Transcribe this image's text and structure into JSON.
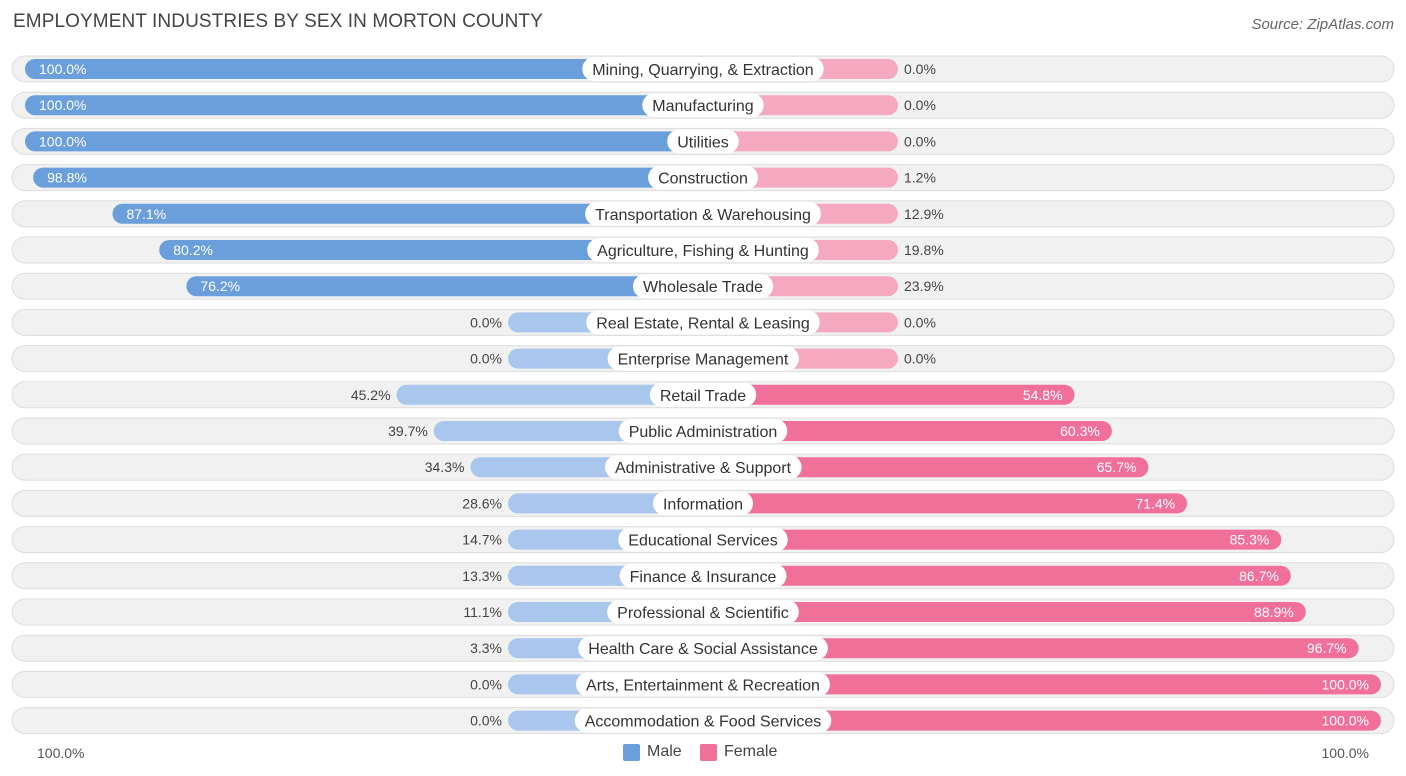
{
  "title": "EMPLOYMENT INDUSTRIES BY SEX IN MORTON COUNTY",
  "source": "Source: ZipAtlas.com",
  "colors": {
    "male_strong": "#6a9fdc",
    "male_light": "#a9c7ec",
    "female_strong": "#f0709a",
    "female_light": "#f5a9c0",
    "track": "#f1f1f1",
    "track_border": "#dddddd"
  },
  "legend": {
    "male_label": "Male",
    "female_label": "Female"
  },
  "axis": {
    "left_label": "100.0%",
    "right_label": "100.0%"
  },
  "chart_data": {
    "type": "bar",
    "orientation": "horizontal-diverging",
    "title": "EMPLOYMENT INDUSTRIES BY SEX IN MORTON COUNTY",
    "xlim": [
      -100,
      100
    ],
    "categories": [
      "Mining, Quarrying, & Extraction",
      "Manufacturing",
      "Utilities",
      "Construction",
      "Transportation & Warehousing",
      "Agriculture, Fishing & Hunting",
      "Wholesale Trade",
      "Real Estate, Rental & Leasing",
      "Enterprise Management",
      "Retail Trade",
      "Public Administration",
      "Administrative & Support",
      "Information",
      "Educational Services",
      "Finance & Insurance",
      "Professional & Scientific",
      "Health Care & Social Assistance",
      "Arts, Entertainment & Recreation",
      "Accommodation & Food Services"
    ],
    "series": [
      {
        "name": "Male",
        "values": [
          100.0,
          100.0,
          100.0,
          98.8,
          87.1,
          80.2,
          76.2,
          0.0,
          0.0,
          45.2,
          39.7,
          34.3,
          28.6,
          14.7,
          13.3,
          11.1,
          3.3,
          0.0,
          0.0
        ],
        "labels": [
          "100.0%",
          "100.0%",
          "100.0%",
          "98.8%",
          "87.1%",
          "80.2%",
          "76.2%",
          "0.0%",
          "0.0%",
          "45.2%",
          "39.7%",
          "34.3%",
          "28.6%",
          "14.7%",
          "13.3%",
          "11.1%",
          "3.3%",
          "0.0%",
          "0.0%"
        ]
      },
      {
        "name": "Female",
        "values": [
          0.0,
          0.0,
          0.0,
          1.2,
          12.9,
          19.8,
          23.9,
          0.0,
          0.0,
          54.8,
          60.3,
          65.7,
          71.4,
          85.3,
          86.7,
          88.9,
          96.7,
          100.0,
          100.0
        ],
        "labels": [
          "0.0%",
          "0.0%",
          "0.0%",
          "1.2%",
          "12.9%",
          "19.8%",
          "23.9%",
          "0.0%",
          "0.0%",
          "54.8%",
          "60.3%",
          "65.7%",
          "71.4%",
          "85.3%",
          "86.7%",
          "88.9%",
          "96.7%",
          "100.0%",
          "100.0%"
        ]
      }
    ],
    "legend_position": "bottom-center"
  }
}
